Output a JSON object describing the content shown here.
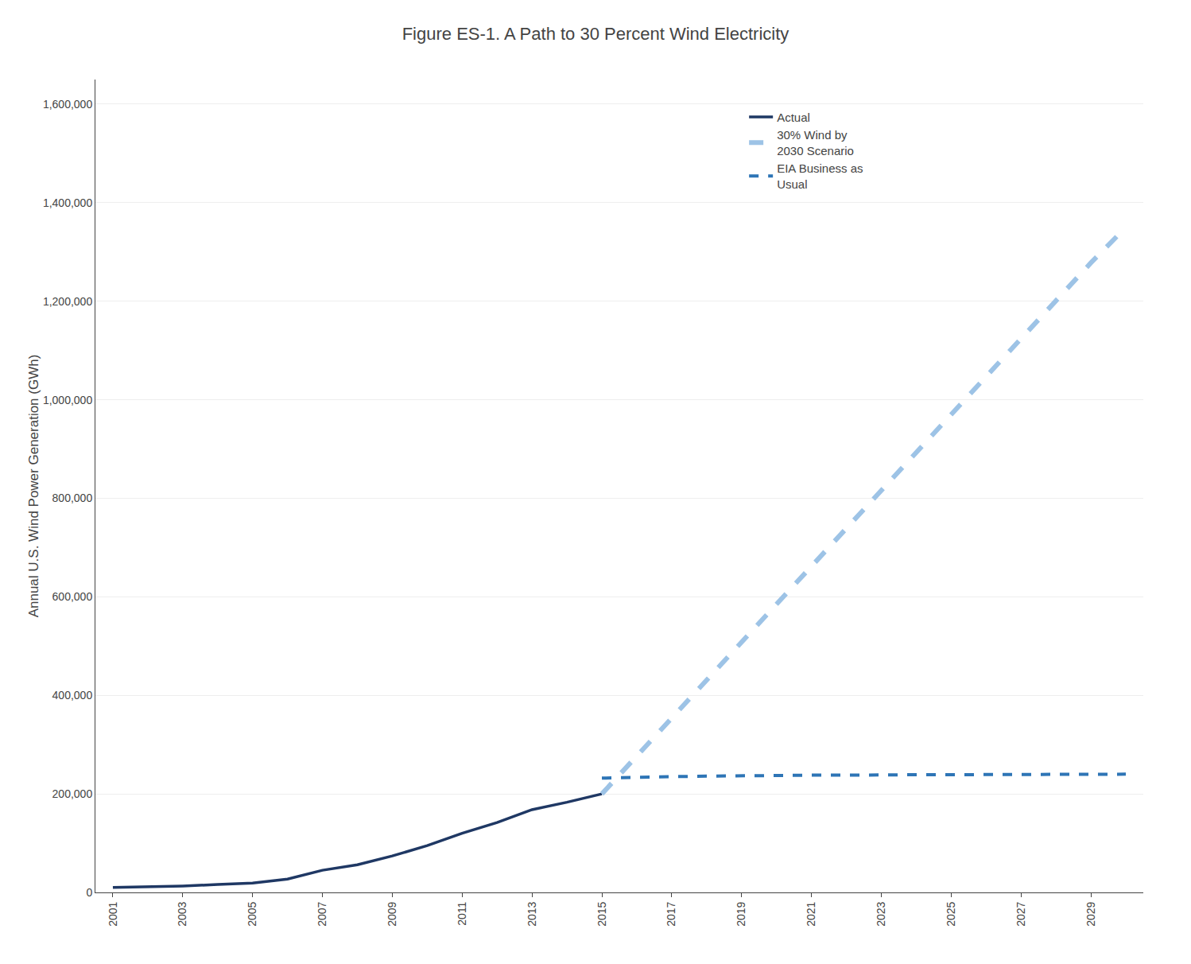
{
  "chart_data": {
    "type": "line",
    "title": "Figure ES-1. A Path to 30 Percent Wind Electricity",
    "ylabel": "Annual U.S. Wind Power Generation (GWh)",
    "x": [
      2001,
      2002,
      2003,
      2004,
      2005,
      2006,
      2007,
      2008,
      2009,
      2010,
      2011,
      2012,
      2013,
      2014,
      2015,
      2016,
      2017,
      2018,
      2019,
      2020,
      2021,
      2022,
      2023,
      2024,
      2025,
      2026,
      2027,
      2028,
      2029,
      2030
    ],
    "series": [
      {
        "name": "Actual",
        "color": "#1F3864",
        "line_style": "solid",
        "values": [
          10000,
          11000,
          13000,
          16000,
          19000,
          27000,
          45000,
          56000,
          74000,
          95000,
          120000,
          142000,
          168000,
          183000,
          200000,
          null,
          null,
          null,
          null,
          null,
          null,
          null,
          null,
          null,
          null,
          null,
          null,
          null,
          null,
          null
        ]
      },
      {
        "name": "30% Wind by\n2030 Scenario",
        "color": "#9DC3E6",
        "line_style": "dashed",
        "values": [
          null,
          null,
          null,
          null,
          null,
          null,
          null,
          null,
          null,
          null,
          null,
          null,
          null,
          null,
          200000,
          277000,
          354000,
          431000,
          508000,
          585000,
          662000,
          739000,
          816000,
          893000,
          970000,
          1047000,
          1124000,
          1201000,
          1278000,
          1350000
        ]
      },
      {
        "name": "EIA Business as\nUsual",
        "color": "#2E75B6",
        "line_style": "dashed",
        "values": [
          null,
          null,
          null,
          null,
          null,
          null,
          null,
          null,
          null,
          null,
          null,
          null,
          null,
          null,
          232000,
          234000,
          235000,
          236000,
          237000,
          238000,
          238000,
          238000,
          239000,
          239000,
          239000,
          239000,
          240000,
          240000,
          240000,
          240000
        ]
      }
    ],
    "xlim": [
      2000.5,
      2030.5
    ],
    "xticks": [
      2001,
      2003,
      2005,
      2007,
      2009,
      2011,
      2013,
      2015,
      2017,
      2019,
      2021,
      2023,
      2025,
      2027,
      2029
    ],
    "ylim": [
      0,
      1650000
    ],
    "yticks": [
      0,
      {
        "value": 200000,
        "label": "200,000"
      },
      {
        "value": 400000,
        "label": "400,000"
      },
      {
        "value": 600000,
        "label": "600,000"
      },
      {
        "value": 800000,
        "label": "800,000"
      },
      {
        "value": 1000000,
        "label": "1,000,000"
      },
      {
        "value": 1200000,
        "label": "1,200,000"
      },
      {
        "value": 1400000,
        "label": "1,400,000"
      },
      {
        "value": 1600000,
        "label": "1,600,000"
      }
    ],
    "grid": "y",
    "legend": "upper right"
  }
}
